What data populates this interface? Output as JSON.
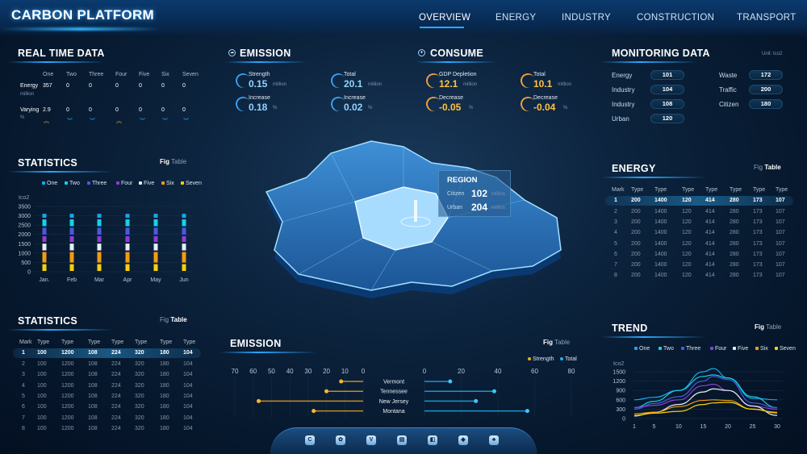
{
  "header": {
    "title": "CARBON PLATFORM",
    "nav": [
      "OVERVIEW",
      "ENERGY",
      "INDUSTRY",
      "CONSTRUCTION",
      "TRANSPORT"
    ],
    "active": "OVERVIEW"
  },
  "realtime": {
    "title": "REAL TIME DATA",
    "columns": [
      "One",
      "Two",
      "Three",
      "Four",
      "Five",
      "Six",
      "Seven"
    ],
    "energy": {
      "label": "Energy",
      "unit": "million",
      "values": [
        "357",
        "0",
        "0",
        "0",
        "0",
        "0",
        "0"
      ]
    },
    "varying": {
      "label": "Varying",
      "unit": "%",
      "values": [
        "2.9",
        "0",
        "0",
        "0",
        "0",
        "0",
        "0"
      ],
      "trend": [
        "up",
        "down",
        "down",
        "up",
        "down",
        "down",
        "down"
      ]
    }
  },
  "emission": {
    "title": "EMISSION",
    "cards": [
      {
        "label": "Strength",
        "value": "0.15",
        "unit": "million"
      },
      {
        "label": "Total",
        "value": "20.1",
        "unit": "million"
      },
      {
        "label": "Increase",
        "value": "0.18",
        "unit": "%"
      },
      {
        "label": "Increase",
        "value": "0.02",
        "unit": "%"
      }
    ]
  },
  "consume": {
    "title": "CONSUME",
    "cards": [
      {
        "label": "GDP Depletion",
        "value": "12.1",
        "unit": "million"
      },
      {
        "label": "Total",
        "value": "10.1",
        "unit": "million"
      },
      {
        "label": "Decrease",
        "value": "-0.05",
        "unit": "%"
      },
      {
        "label": "Decrease",
        "value": "-0.04",
        "unit": "%"
      }
    ]
  },
  "monitoring": {
    "title": "MONITORING DATA",
    "unit": "Unit: tco2",
    "left": [
      {
        "label": "Energy",
        "value": "101"
      },
      {
        "label": "Industry",
        "value": "104"
      },
      {
        "label": "Industry",
        "value": "108"
      },
      {
        "label": "Urban",
        "value": "120"
      }
    ],
    "right": [
      {
        "label": "Waste",
        "value": "172"
      },
      {
        "label": "Traffic",
        "value": "200"
      },
      {
        "label": "Citizen",
        "value": "180"
      }
    ]
  },
  "region": {
    "title": "REGION",
    "rows": [
      {
        "label": "Citizen",
        "value": "102",
        "unit": "million"
      },
      {
        "label": "Urban",
        "value": "204",
        "unit": "million"
      }
    ]
  },
  "toggle": {
    "fig": "Fig",
    "table": "Table"
  },
  "stats_fig": {
    "title": "STATISTICS",
    "active": "Fig"
  },
  "stats_table": {
    "title": "STATISTICS",
    "active": "Table",
    "headers": [
      "Mark",
      "Type",
      "Type",
      "Type",
      "Type",
      "Type",
      "Type",
      "Type"
    ],
    "rows": [
      [
        "1",
        "100",
        "1200",
        "108",
        "224",
        "320",
        "180",
        "104"
      ],
      [
        "2",
        "100",
        "1200",
        "108",
        "224",
        "320",
        "180",
        "104"
      ],
      [
        "3",
        "100",
        "1200",
        "108",
        "224",
        "320",
        "180",
        "104"
      ],
      [
        "4",
        "100",
        "1200",
        "108",
        "224",
        "320",
        "180",
        "104"
      ],
      [
        "5",
        "100",
        "1200",
        "108",
        "224",
        "320",
        "180",
        "104"
      ],
      [
        "6",
        "100",
        "1200",
        "108",
        "224",
        "320",
        "180",
        "104"
      ],
      [
        "7",
        "100",
        "1200",
        "108",
        "224",
        "320",
        "180",
        "104"
      ],
      [
        "8",
        "100",
        "1200",
        "108",
        "224",
        "320",
        "180",
        "104"
      ]
    ]
  },
  "energy_table": {
    "title": "ENERGY",
    "active": "Table",
    "headers": [
      "Mark",
      "Type",
      "Type",
      "Type",
      "Type",
      "Type",
      "Type",
      "Type"
    ],
    "rows": [
      [
        "1",
        "200",
        "1400",
        "120",
        "414",
        "280",
        "173",
        "107"
      ],
      [
        "2",
        "200",
        "1400",
        "120",
        "414",
        "280",
        "173",
        "107"
      ],
      [
        "3",
        "200",
        "1400",
        "120",
        "414",
        "280",
        "173",
        "107"
      ],
      [
        "4",
        "200",
        "1400",
        "120",
        "414",
        "280",
        "173",
        "107"
      ],
      [
        "5",
        "200",
        "1400",
        "120",
        "414",
        "280",
        "173",
        "107"
      ],
      [
        "6",
        "200",
        "1400",
        "120",
        "414",
        "280",
        "173",
        "107"
      ],
      [
        "7",
        "200",
        "1400",
        "120",
        "414",
        "280",
        "173",
        "107"
      ],
      [
        "8",
        "200",
        "1400",
        "120",
        "414",
        "280",
        "173",
        "107"
      ]
    ]
  },
  "trend": {
    "title": "TREND",
    "active": "Fig"
  },
  "emission_chart": {
    "title": "EMISSION",
    "active": "Fig"
  },
  "dock_icons": [
    "c-icon",
    "gear-icon",
    "v-icon",
    "building-icon",
    "board-icon",
    "eye-icon",
    "people-icon"
  ],
  "chart_data": [
    {
      "type": "bar",
      "stacked": true,
      "ylabel": "tco2",
      "ylim": [
        0,
        3500
      ],
      "yticks": [
        0,
        500,
        1000,
        1500,
        2000,
        2500,
        3000,
        3500
      ],
      "categories": [
        "Jan.",
        "Feb",
        "Mar",
        "Apr",
        "May",
        "Jun"
      ],
      "legend": "top",
      "series": [
        {
          "name": "Seven",
          "color": "#f5d20a",
          "values": [
            450,
            450,
            450,
            450,
            450,
            450
          ]
        },
        {
          "name": "Six",
          "color": "#f39c12",
          "values": [
            650,
            650,
            650,
            650,
            650,
            650
          ]
        },
        {
          "name": "Five",
          "color": "#e8eef5",
          "values": [
            450,
            450,
            450,
            450,
            450,
            450
          ]
        },
        {
          "name": "Four",
          "color": "#8b3fd6",
          "values": [
            400,
            400,
            400,
            400,
            400,
            400
          ]
        },
        {
          "name": "Three",
          "color": "#4b5ae0",
          "values": [
            450,
            450,
            450,
            450,
            450,
            450
          ]
        },
        {
          "name": "Two",
          "color": "#13d3e8",
          "values": [
            450,
            450,
            450,
            450,
            450,
            450
          ]
        },
        {
          "name": "One",
          "color": "#1aa6e8",
          "values": [
            300,
            300,
            300,
            300,
            300,
            300
          ]
        }
      ]
    },
    {
      "type": "bar",
      "orientation": "horizontal-butterfly",
      "categories": [
        "Vermont",
        "Tennessee",
        "New Jersey",
        "Montana"
      ],
      "left_ticks": [
        70,
        60,
        50,
        40,
        30,
        20,
        10,
        0
      ],
      "right_ticks": [
        0,
        20,
        40,
        60,
        80
      ],
      "legend": "top-right",
      "series": [
        {
          "name": "Strength",
          "color": "#f5a623",
          "values": [
            12,
            20,
            57,
            27
          ]
        },
        {
          "name": "Total",
          "color": "#1fb2f5",
          "values": [
            14,
            38,
            28,
            56
          ]
        }
      ]
    },
    {
      "type": "line",
      "ylabel": "tco2",
      "ylim": [
        0,
        1700
      ],
      "yticks": [
        0,
        300,
        600,
        900,
        1200,
        1500
      ],
      "xticks": [
        1,
        5,
        10,
        15,
        20,
        25,
        30
      ],
      "legend": "top",
      "x": [
        1,
        5,
        10,
        15,
        17,
        20,
        25,
        30
      ],
      "series": [
        {
          "name": "One",
          "color": "#1aa6e8",
          "values": [
            600,
            680,
            900,
            1500,
            1600,
            1300,
            650,
            600
          ]
        },
        {
          "name": "Two",
          "color": "#13d3e8",
          "values": [
            350,
            550,
            900,
            1350,
            1400,
            1300,
            700,
            350
          ]
        },
        {
          "name": "Three",
          "color": "#4b5ae0",
          "values": [
            300,
            480,
            700,
            1200,
            1350,
            1250,
            500,
            350
          ]
        },
        {
          "name": "Four",
          "color": "#8b3fd6",
          "values": [
            350,
            420,
            600,
            1050,
            1100,
            900,
            400,
            300
          ]
        },
        {
          "name": "Five",
          "color": "#e8eef5",
          "values": [
            80,
            200,
            450,
            850,
            950,
            900,
            400,
            100
          ]
        },
        {
          "name": "Six",
          "color": "#f39c12",
          "values": [
            150,
            200,
            380,
            580,
            600,
            580,
            300,
            200
          ]
        },
        {
          "name": "Seven",
          "color": "#f5d20a",
          "values": [
            100,
            170,
            230,
            450,
            500,
            520,
            300,
            180
          ]
        }
      ]
    }
  ]
}
